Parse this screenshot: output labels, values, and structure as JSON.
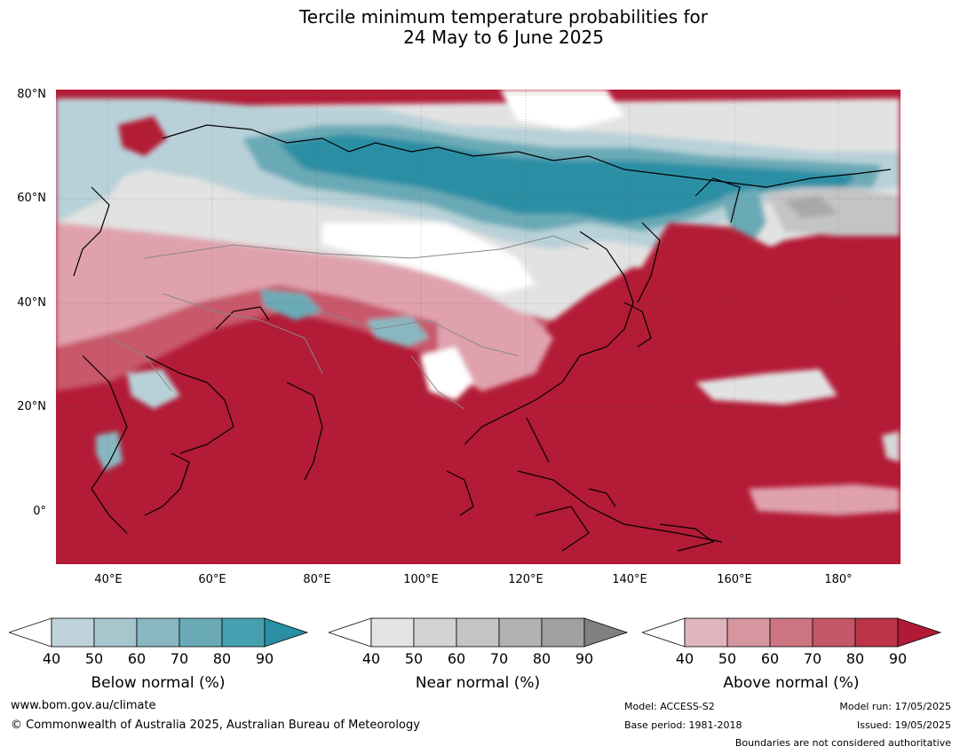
{
  "title": {
    "line1": "Tercile minimum temperature probabilities for",
    "line2": "24 May to 6 June 2025"
  },
  "axes": {
    "lat_labels": [
      "80°N",
      "60°N",
      "40°N",
      "20°N",
      "0°"
    ],
    "lon_labels": [
      "40°E",
      "60°E",
      "80°E",
      "100°E",
      "120°E",
      "140°E",
      "160°E",
      "180°"
    ]
  },
  "colorbars": [
    {
      "label": "Below normal (%)",
      "ticks": [
        "40",
        "50",
        "60",
        "70",
        "80",
        "90"
      ],
      "colors": [
        "#ffffff",
        "#bfd3da",
        "#a6c6cd",
        "#89b7c1",
        "#6aaab6",
        "#46a0b0",
        "#2a8fa5"
      ]
    },
    {
      "label": "Near normal (%)",
      "ticks": [
        "40",
        "50",
        "60",
        "70",
        "80",
        "90"
      ],
      "colors": [
        "#ffffff",
        "#e4e4e4",
        "#d4d4d4",
        "#c4c4c4",
        "#b2b2b2",
        "#a0a0a0",
        "#808080"
      ]
    },
    {
      "label": "Above normal (%)",
      "ticks": [
        "40",
        "50",
        "60",
        "70",
        "80",
        "90"
      ],
      "colors": [
        "#ffffff",
        "#e0b5bd",
        "#d6969f",
        "#cc7480",
        "#c35667",
        "#bb3549",
        "#b11a37"
      ]
    }
  ],
  "footer": {
    "website": "www.bom.gov.au/climate",
    "copyright": "© Commonwealth of Australia 2025, Australian Bureau of Meteorology",
    "model": "Model: ACCESS-S2",
    "base_period": "Base period: 1981-2018",
    "model_run": "Model run: 17/05/2025",
    "issued": "Issued: 19/05/2025",
    "disclaimer": "Boundaries are not considered authoritative"
  },
  "map_colors": {
    "above": "#b31b36",
    "above_med": "#c8586a",
    "above_light": "#dfa2ad",
    "below": "#2a8fa5",
    "below_med": "#6aaab6",
    "below_light": "#b8d1d8",
    "near": "#d6d6d6",
    "near_dark": "#a8a8a8",
    "white": "#ffffff"
  }
}
